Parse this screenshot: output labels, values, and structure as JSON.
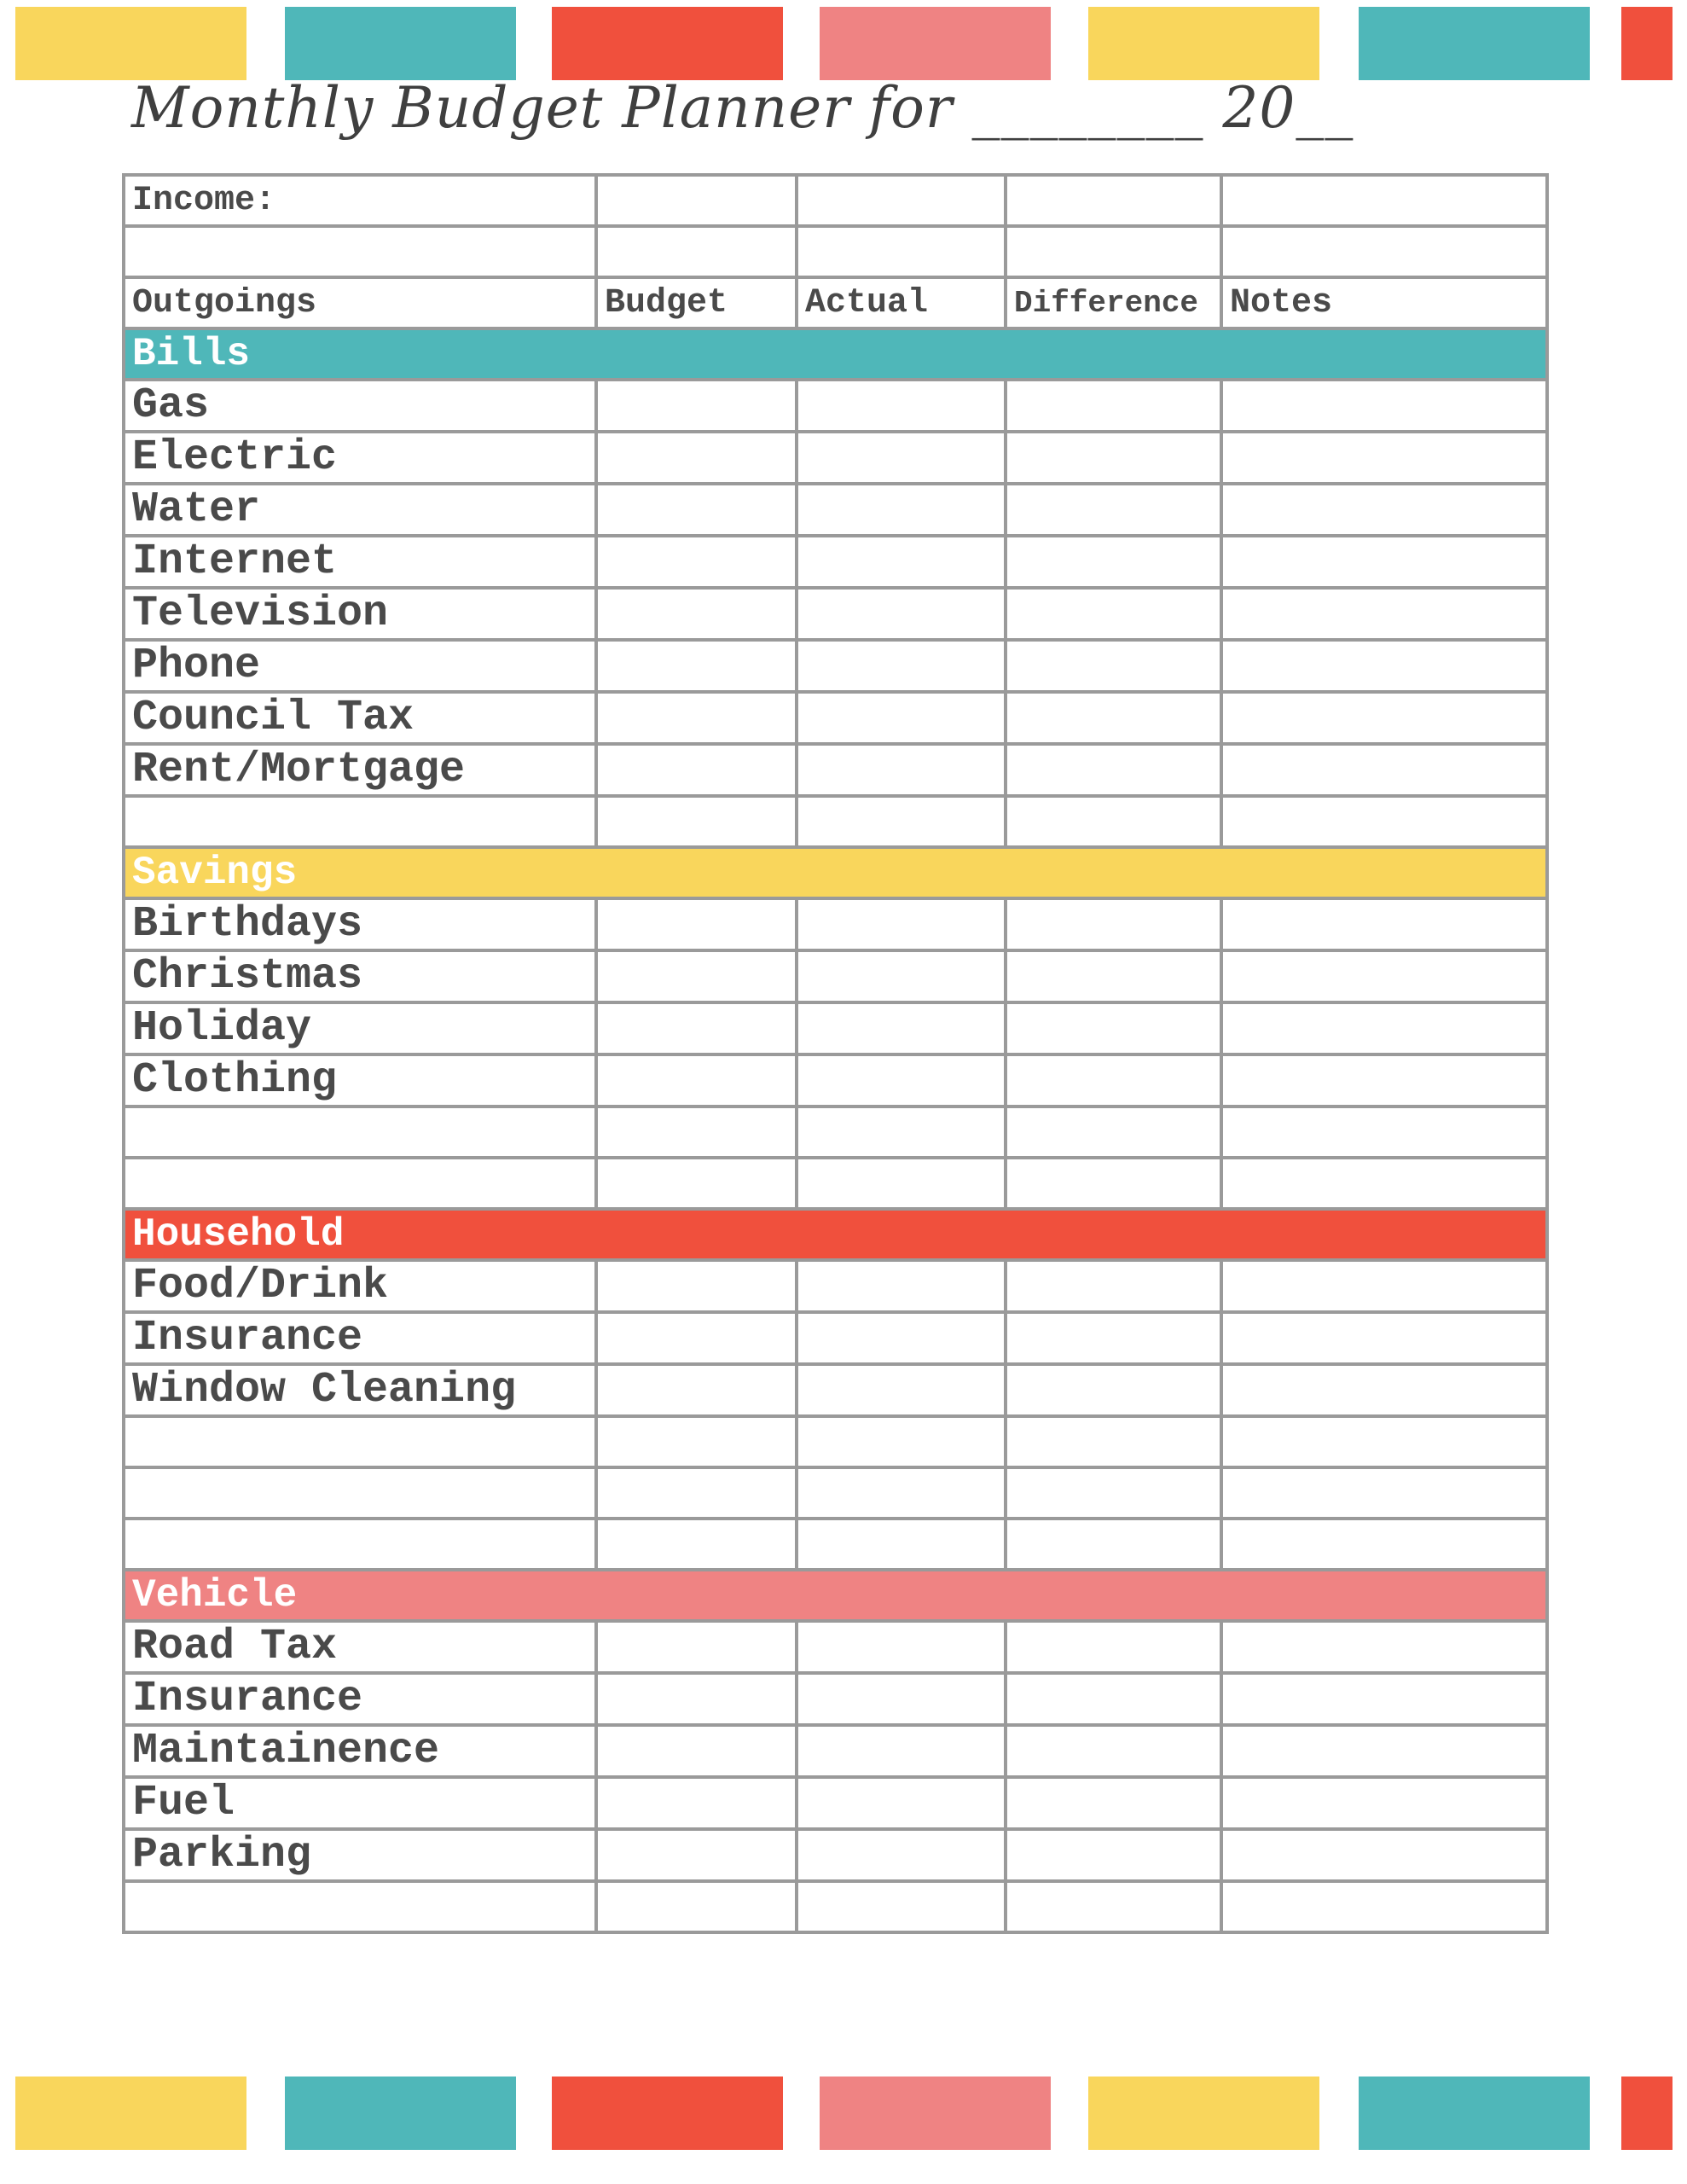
{
  "colors": {
    "yellow": "#F9D65C",
    "teal": "#4FB7B9",
    "red": "#F0503D",
    "pink": "#EF8383",
    "border": "#9A9A9A",
    "text": "#4A4A4A"
  },
  "title": "Monthly Budget Planner for ________ 20__",
  "income_label": "Income:",
  "headers": {
    "outgoings": "Outgoings",
    "budget": "Budget",
    "actual": "Actual",
    "difference": "Difference",
    "notes": "Notes"
  },
  "sections": [
    {
      "name": "Bills",
      "color": "#4FB7B9",
      "items": [
        "Gas",
        "Electric",
        "Water",
        "Internet",
        "Television",
        "Phone",
        "Council Tax",
        "Rent/Mortgage",
        ""
      ]
    },
    {
      "name": "Savings",
      "color": "#F9D65C",
      "items": [
        "Birthdays",
        "Christmas",
        "Holiday",
        "Clothing",
        "",
        ""
      ]
    },
    {
      "name": "Household",
      "color": "#F0503D",
      "items": [
        "Food/Drink",
        "Insurance",
        "Window Cleaning",
        "",
        "",
        ""
      ]
    },
    {
      "name": "Vehicle",
      "color": "#EF8383",
      "items": [
        "Road Tax",
        "Insurance",
        "Maintainence",
        "Fuel",
        "Parking",
        ""
      ]
    }
  ]
}
